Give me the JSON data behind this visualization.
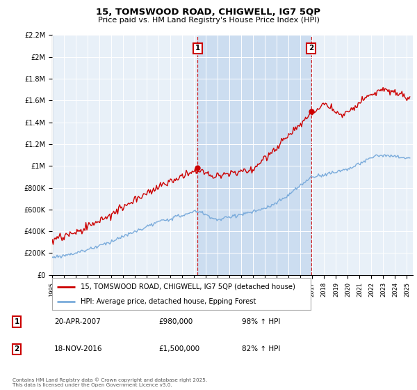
{
  "title": "15, TOMSWOOD ROAD, CHIGWELL, IG7 5QP",
  "subtitle": "Price paid vs. HM Land Registry's House Price Index (HPI)",
  "legend_house": "15, TOMSWOOD ROAD, CHIGWELL, IG7 5QP (detached house)",
  "legend_hpi": "HPI: Average price, detached house, Epping Forest",
  "annotation1_label": "1",
  "annotation1_date": "20-APR-2007",
  "annotation1_price": "£980,000",
  "annotation1_hpi": "98% ↑ HPI",
  "annotation2_label": "2",
  "annotation2_date": "18-NOV-2016",
  "annotation2_price": "£1,500,000",
  "annotation2_hpi": "82% ↑ HPI",
  "footer": "Contains HM Land Registry data © Crown copyright and database right 2025.\nThis data is licensed under the Open Government Licence v3.0.",
  "house_color": "#cc0000",
  "hpi_color": "#7aabdb",
  "background_color": "#e8f0f8",
  "shade_color": "#ccddf0",
  "ylim": [
    0,
    2200000
  ],
  "sale1_year": 2007.3,
  "sale1_value": 980000,
  "sale2_year": 2016.9,
  "sale2_value": 1500000
}
